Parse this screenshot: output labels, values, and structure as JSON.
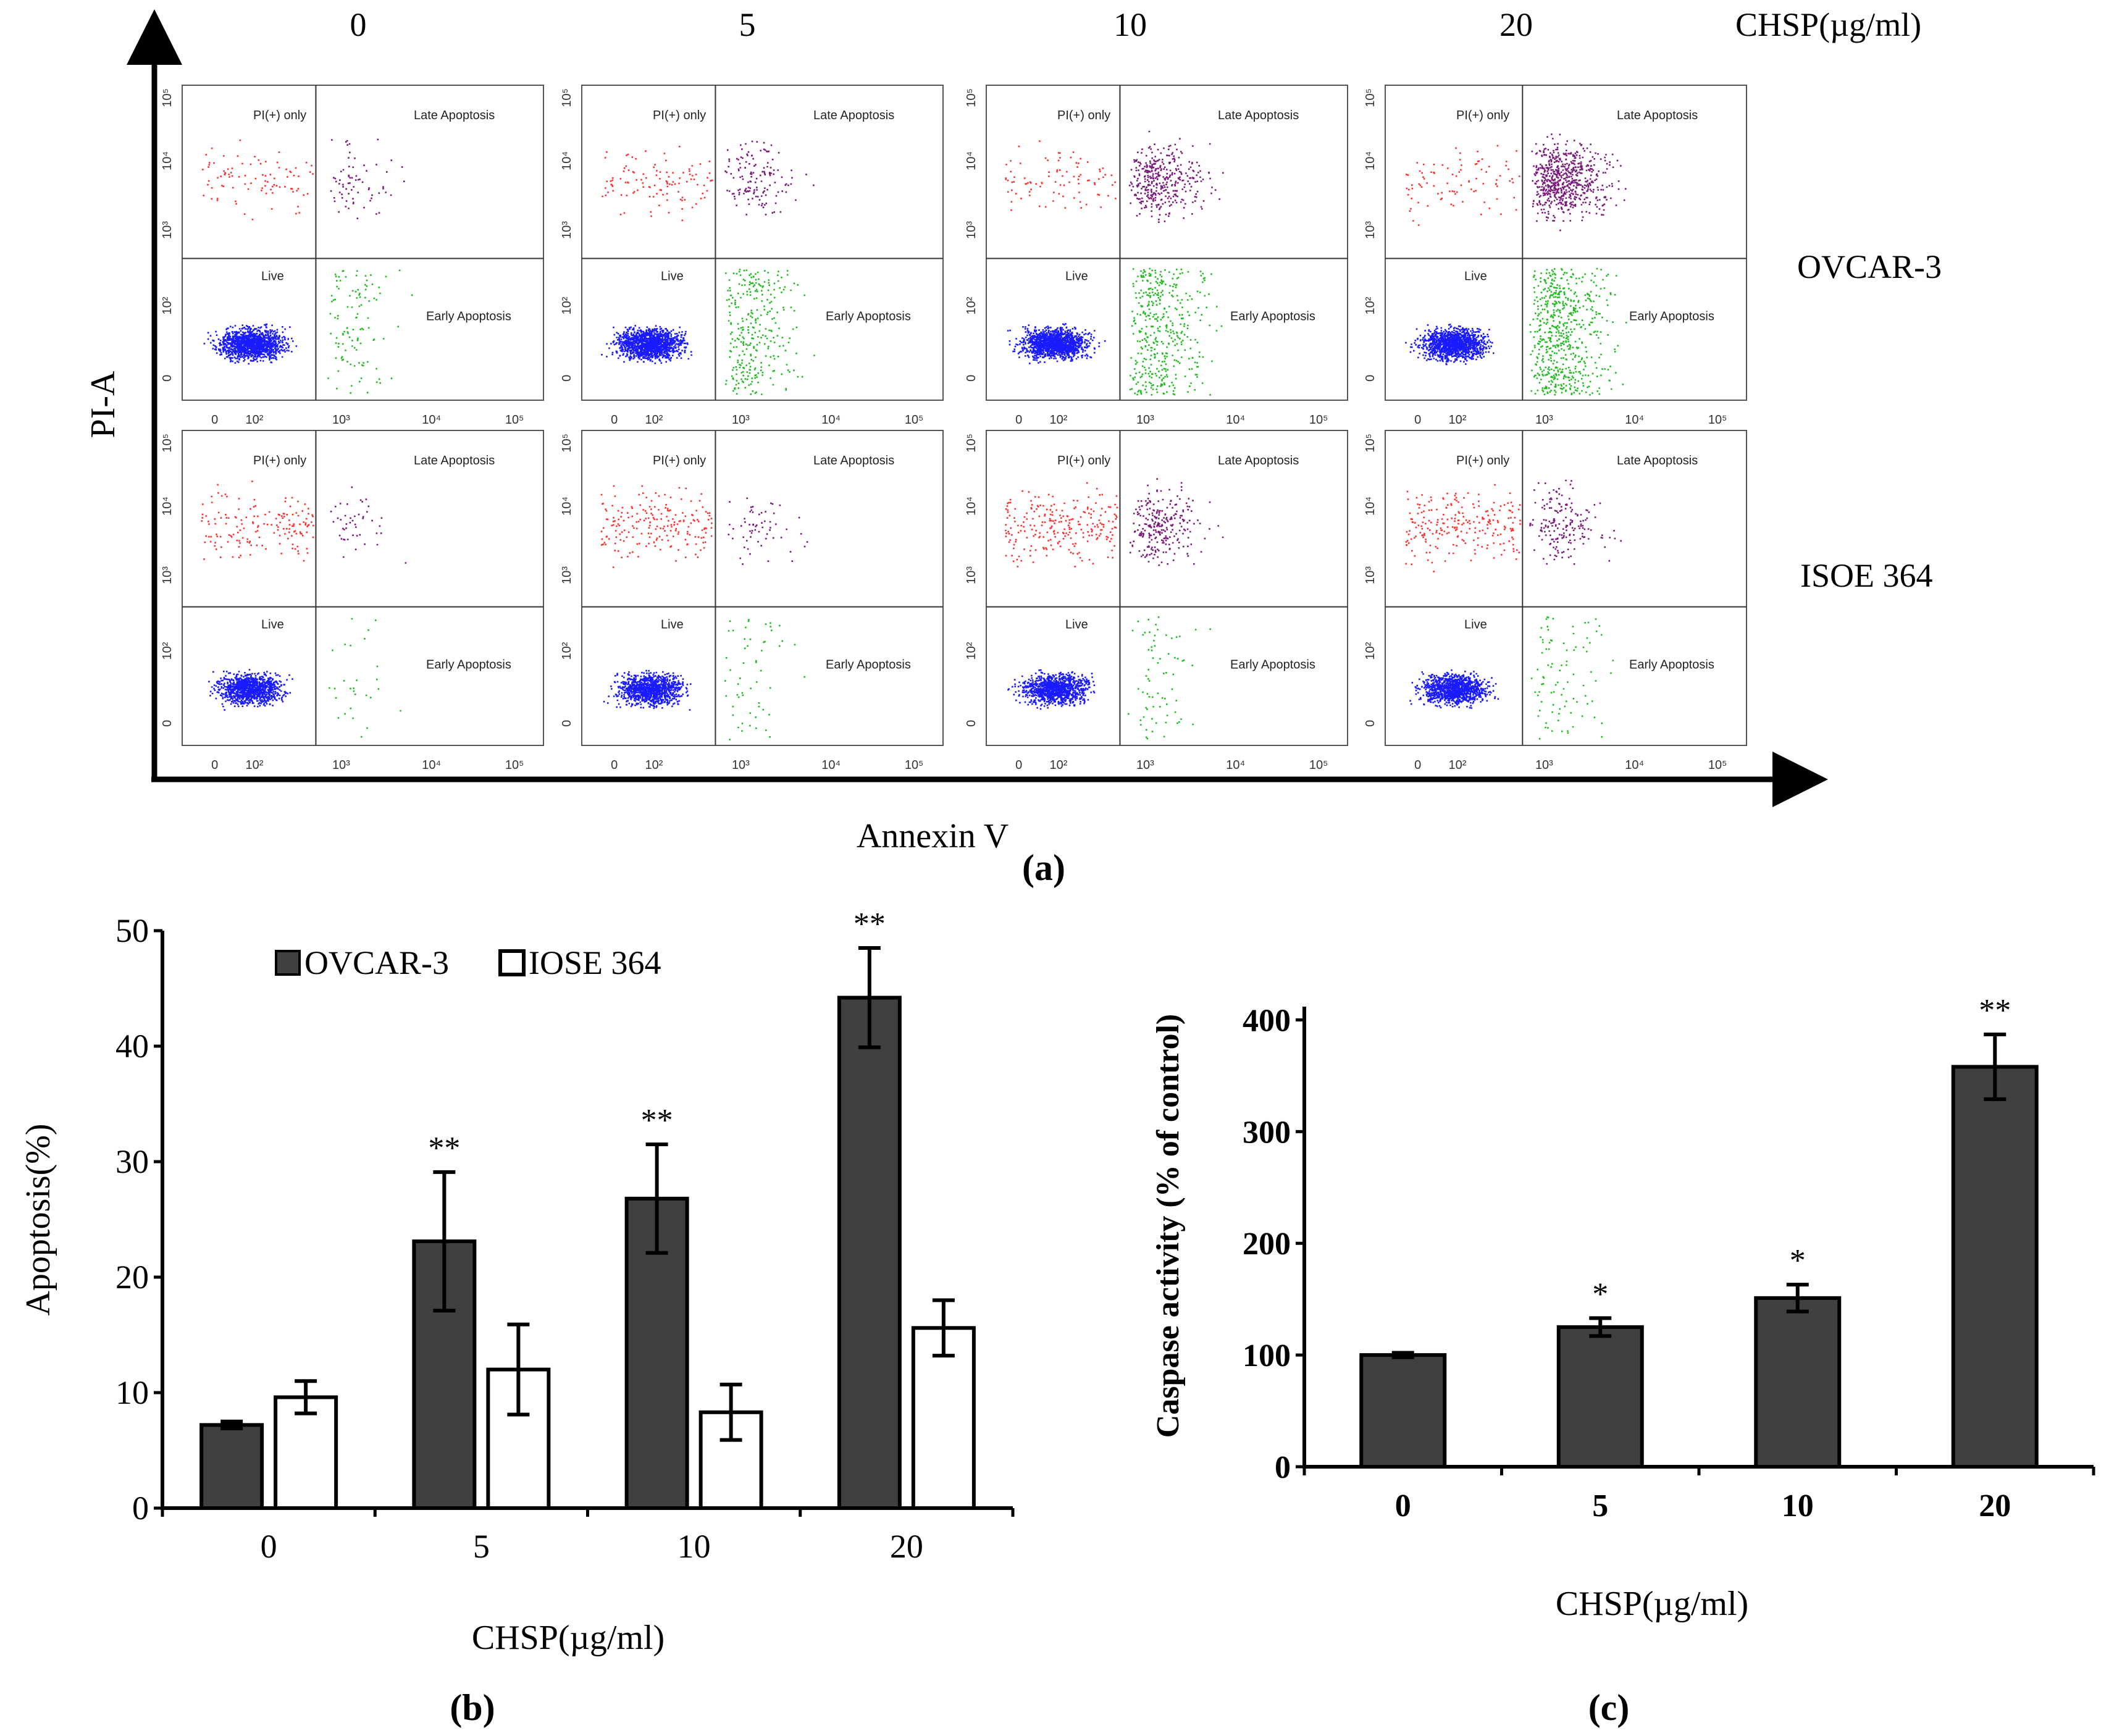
{
  "panel_a": {
    "conc_unit_label": "CHSP(µg/ml)",
    "concentrations": [
      "0",
      "5",
      "10",
      "20"
    ],
    "row_labels": [
      "OVCAR-3",
      "ISOE 364"
    ],
    "y_axis_label": "PI-A",
    "x_axis_label": "Annexin V",
    "panel_label": "(a)",
    "quadrant_labels": {
      "top_left": "PI(+) only",
      "top_right": "Late Apoptosis",
      "bottom_left": "Live",
      "bottom_right": "Early Apoptosis"
    },
    "x_ticks": [
      "0",
      "10²",
      "10³",
      "10⁴",
      "10⁵"
    ],
    "y_ticks": [
      "0",
      "10²",
      "10³",
      "10⁴",
      "10⁵"
    ],
    "population_colors": {
      "live": "#1a1aff",
      "pi_only": "#ff3030",
      "late": "#7a1a7a",
      "early": "#22bb22"
    }
  },
  "chart_data": [
    {
      "type": "bar",
      "panel_label": "(b)",
      "categories": [
        "0",
        "5",
        "10",
        "20"
      ],
      "xlabel": "CHSP(µg/ml)",
      "ylabel": "Apoptosis(%)",
      "ylim": [
        0,
        50
      ],
      "yticks": [
        0,
        10,
        20,
        30,
        40,
        50
      ],
      "legend_position": "top-left",
      "series": [
        {
          "name": "OVCAR-3",
          "color": "#404040",
          "values": [
            7.2,
            23.1,
            26.8,
            44.2
          ],
          "errors": [
            0.3,
            6.0,
            4.7,
            4.3
          ],
          "annotations": [
            "",
            "**",
            "**",
            "**"
          ]
        },
        {
          "name": "IOSE 364",
          "color": "#ffffff",
          "values": [
            9.6,
            12.0,
            8.3,
            15.6
          ],
          "errors": [
            1.4,
            3.9,
            2.4,
            2.4
          ],
          "annotations": [
            "",
            "",
            "",
            ""
          ]
        }
      ]
    },
    {
      "type": "bar",
      "panel_label": "(c)",
      "categories": [
        "0",
        "5",
        "10",
        "20"
      ],
      "xlabel": "CHSP(µg/ml)",
      "ylabel": "Caspase activity (% of control)",
      "ylim": [
        0,
        450
      ],
      "yticks": [
        0,
        100,
        200,
        300,
        400
      ],
      "series": [
        {
          "color": "#404040",
          "values": [
            100,
            125,
            151,
            358
          ],
          "errors": [
            2,
            8,
            12,
            29
          ],
          "annotations": [
            "",
            "*",
            "*",
            "**"
          ]
        }
      ]
    }
  ]
}
